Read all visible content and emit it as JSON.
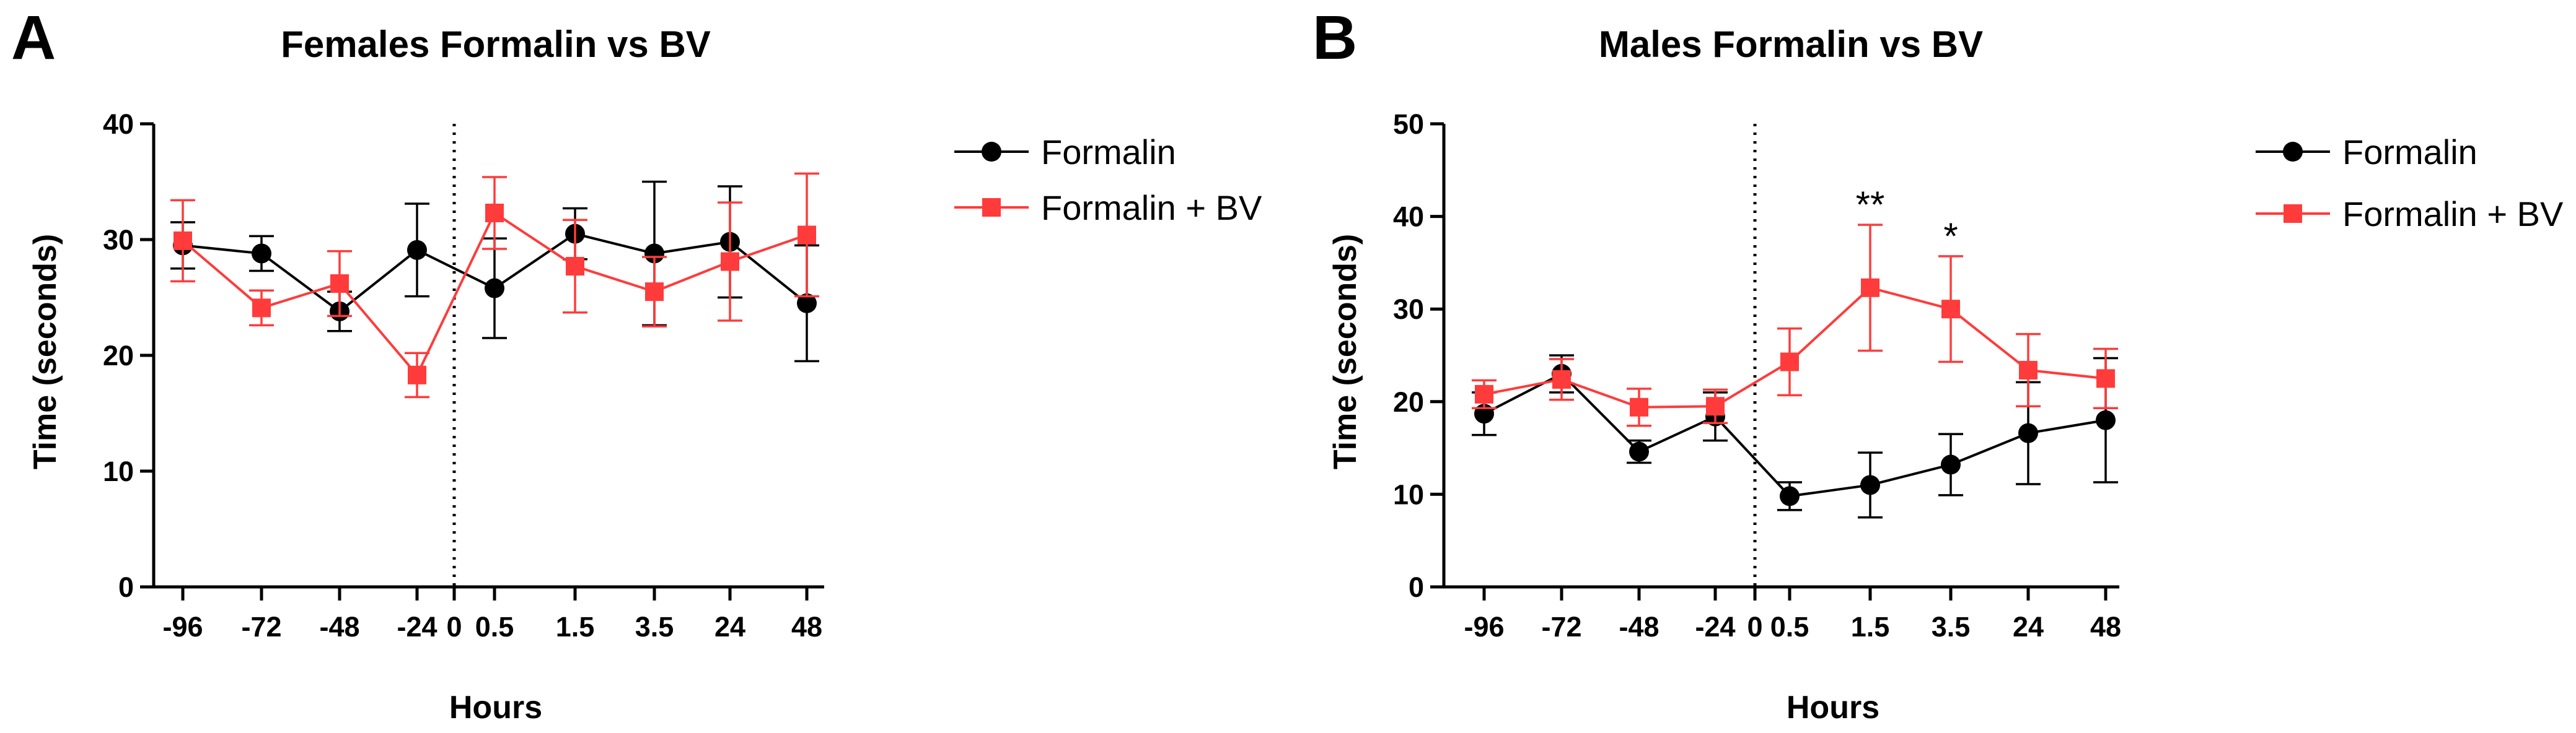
{
  "chart_data": [
    {
      "panel": "A",
      "type": "line",
      "title": "Females Formalin vs BV",
      "xlabel": "Hours",
      "ylabel": "Time (seconds)",
      "ylim": [
        0,
        40
      ],
      "yticks": [
        0,
        10,
        20,
        30,
        40
      ],
      "categories": [
        "-96",
        "-72",
        "-48",
        "-24",
        "0",
        "0.5",
        "1.5",
        "3.5",
        "24",
        "48"
      ],
      "divider_after": "0",
      "series": [
        {
          "name": "Formalin",
          "color": "#000000",
          "marker": "circle",
          "x": [
            "-96",
            "-72",
            "-48",
            "-24",
            "0.5",
            "1.5",
            "3.5",
            "24",
            "48"
          ],
          "values": [
            29.5,
            28.8,
            23.8,
            29.1,
            25.8,
            30.5,
            28.8,
            29.8,
            24.5
          ],
          "errors": [
            2.0,
            1.5,
            1.7,
            4.0,
            4.3,
            2.2,
            6.2,
            4.8,
            5.0
          ],
          "significance": [
            "",
            "",
            "",
            "",
            "",
            "",
            "",
            "",
            ""
          ]
        },
        {
          "name": "Formalin + BV",
          "color": "#ff3b3b",
          "marker": "square",
          "x": [
            "-96",
            "-72",
            "-48",
            "-24",
            "0.5",
            "1.5",
            "3.5",
            "24",
            "48"
          ],
          "values": [
            29.9,
            24.1,
            26.2,
            18.3,
            32.3,
            27.7,
            25.5,
            28.1,
            30.4
          ],
          "errors": [
            3.5,
            1.5,
            2.8,
            1.9,
            3.1,
            4.0,
            3.0,
            5.1,
            5.3
          ],
          "significance": [
            "",
            "",
            "",
            "",
            "",
            "",
            "",
            "",
            ""
          ]
        }
      ]
    },
    {
      "panel": "B",
      "type": "line",
      "title": "Males Formalin vs BV",
      "xlabel": "Hours",
      "ylabel": "Time (seconds)",
      "ylim": [
        0,
        50
      ],
      "yticks": [
        0,
        10,
        20,
        30,
        40,
        50
      ],
      "categories": [
        "-96",
        "-72",
        "-48",
        "-24",
        "0",
        "0.5",
        "1.5",
        "3.5",
        "24",
        "48"
      ],
      "divider_after": "0",
      "series": [
        {
          "name": "Formalin",
          "color": "#000000",
          "marker": "circle",
          "x": [
            "-96",
            "-72",
            "-48",
            "-24",
            "0.5",
            "1.5",
            "3.5",
            "24",
            "48"
          ],
          "values": [
            18.7,
            23.0,
            14.6,
            18.4,
            9.8,
            11.0,
            13.2,
            16.6,
            18.0
          ],
          "errors": [
            2.3,
            2.0,
            1.2,
            2.6,
            1.5,
            3.5,
            3.3,
            5.5,
            6.7
          ],
          "significance": [
            "",
            "",
            "",
            "",
            "",
            "",
            "",
            "",
            ""
          ]
        },
        {
          "name": "Formalin + BV",
          "color": "#ff3b3b",
          "marker": "square",
          "x": [
            "-96",
            "-72",
            "-48",
            "-24",
            "0.5",
            "1.5",
            "3.5",
            "24",
            "48"
          ],
          "values": [
            20.8,
            22.4,
            19.4,
            19.5,
            24.3,
            32.3,
            30.0,
            23.4,
            22.5
          ],
          "errors": [
            1.5,
            2.2,
            2.0,
            1.8,
            3.6,
            6.8,
            5.7,
            3.9,
            3.2
          ],
          "significance": [
            "",
            "",
            "",
            "",
            "",
            "**",
            "*",
            "",
            ""
          ]
        }
      ]
    }
  ]
}
